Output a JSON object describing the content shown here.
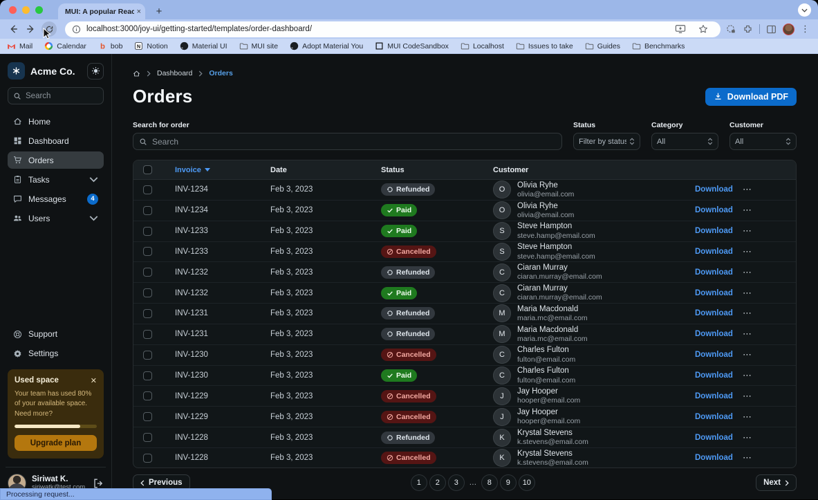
{
  "colors": {
    "primary": "#0B6BCB",
    "link": "#4E9AF5",
    "badge": "#0B6BCB",
    "paid_bg": "#1F7A1F",
    "cancelled_bg": "#551514",
    "cancelled_text": "#F2A79F",
    "refunded_bg": "#32383E",
    "warning_button": "#B4770E"
  },
  "browser": {
    "tab": {
      "title": "MUI: A popular React UI fram"
    },
    "url": "localhost:3000/joy-ui/getting-started/templates/order-dashboard/",
    "status_text": "Processing request...",
    "bookmarks": [
      {
        "label": "Mail",
        "icon": "gmail"
      },
      {
        "label": "Calendar",
        "icon": "gcal"
      },
      {
        "label": "bob",
        "icon": "bob"
      },
      {
        "label": "Notion",
        "icon": "notion"
      },
      {
        "label": "Material UI",
        "icon": "github"
      },
      {
        "label": "MUI site",
        "icon": "folder"
      },
      {
        "label": "Adopt Material You",
        "icon": "github"
      },
      {
        "label": "MUI CodeSandbox",
        "icon": "codesandbox"
      },
      {
        "label": "Localhost",
        "icon": "folder"
      },
      {
        "label": "Issues to take",
        "icon": "folder"
      },
      {
        "label": "Guides",
        "icon": "folder"
      },
      {
        "label": "Benchmarks",
        "icon": "folder"
      }
    ]
  },
  "sidebar": {
    "brand": "Acme Co.",
    "search_placeholder": "Search",
    "nav": [
      {
        "label": "Home",
        "icon": "home"
      },
      {
        "label": "Dashboard",
        "icon": "dashboard"
      },
      {
        "label": "Orders",
        "icon": "cart",
        "selected": true
      },
      {
        "label": "Tasks",
        "icon": "tasks",
        "chevron": true
      },
      {
        "label": "Messages",
        "icon": "messages",
        "badge": "4"
      },
      {
        "label": "Users",
        "icon": "users",
        "chevron": true
      }
    ],
    "secondary": [
      {
        "label": "Support",
        "icon": "support"
      },
      {
        "label": "Settings",
        "icon": "settings"
      }
    ],
    "used_space": {
      "title": "Used space",
      "body": "Your team has used 80% of your available space. Need more?",
      "progress_percent": 80,
      "button_label": "Upgrade plan"
    },
    "user": {
      "name": "Siriwat K.",
      "email": "siriwatk@test.com"
    }
  },
  "main": {
    "breadcrumb": [
      "Dashboard",
      "Orders"
    ],
    "title": "Orders",
    "download_button_label": "Download PDF",
    "filters": {
      "search_label": "Search for order",
      "search_placeholder": "Search",
      "selects": [
        {
          "label": "Status",
          "value": "Filter by status"
        },
        {
          "label": "Category",
          "value": "All"
        },
        {
          "label": "Customer",
          "value": "All"
        }
      ]
    },
    "table": {
      "columns": [
        "Invoice",
        "Date",
        "Status",
        "Customer"
      ],
      "download_label": "Download",
      "rows": [
        {
          "invoice": "INV-1234",
          "date": "Feb 3, 2023",
          "status": "Refunded",
          "status_type": "refunded",
          "initial": "O",
          "name": "Olivia Ryhe",
          "email": "olivia@email.com"
        },
        {
          "invoice": "INV-1234",
          "date": "Feb 3, 2023",
          "status": "Paid",
          "status_type": "paid",
          "initial": "O",
          "name": "Olivia Ryhe",
          "email": "olivia@email.com"
        },
        {
          "invoice": "INV-1233",
          "date": "Feb 3, 2023",
          "status": "Paid",
          "status_type": "paid",
          "initial": "S",
          "name": "Steve Hampton",
          "email": "steve.hamp@email.com"
        },
        {
          "invoice": "INV-1233",
          "date": "Feb 3, 2023",
          "status": "Cancelled",
          "status_type": "cancelled",
          "initial": "S",
          "name": "Steve Hampton",
          "email": "steve.hamp@email.com"
        },
        {
          "invoice": "INV-1232",
          "date": "Feb 3, 2023",
          "status": "Refunded",
          "status_type": "refunded",
          "initial": "C",
          "name": "Ciaran Murray",
          "email": "ciaran.murray@email.com"
        },
        {
          "invoice": "INV-1232",
          "date": "Feb 3, 2023",
          "status": "Paid",
          "status_type": "paid",
          "initial": "C",
          "name": "Ciaran Murray",
          "email": "ciaran.murray@email.com"
        },
        {
          "invoice": "INV-1231",
          "date": "Feb 3, 2023",
          "status": "Refunded",
          "status_type": "refunded",
          "initial": "M",
          "name": "Maria Macdonald",
          "email": "maria.mc@email.com"
        },
        {
          "invoice": "INV-1231",
          "date": "Feb 3, 2023",
          "status": "Refunded",
          "status_type": "refunded",
          "initial": "M",
          "name": "Maria Macdonald",
          "email": "maria.mc@email.com"
        },
        {
          "invoice": "INV-1230",
          "date": "Feb 3, 2023",
          "status": "Cancelled",
          "status_type": "cancelled",
          "initial": "C",
          "name": "Charles Fulton",
          "email": "fulton@email.com"
        },
        {
          "invoice": "INV-1230",
          "date": "Feb 3, 2023",
          "status": "Paid",
          "status_type": "paid",
          "initial": "C",
          "name": "Charles Fulton",
          "email": "fulton@email.com"
        },
        {
          "invoice": "INV-1229",
          "date": "Feb 3, 2023",
          "status": "Cancelled",
          "status_type": "cancelled",
          "initial": "J",
          "name": "Jay Hooper",
          "email": "hooper@email.com"
        },
        {
          "invoice": "INV-1229",
          "date": "Feb 3, 2023",
          "status": "Cancelled",
          "status_type": "cancelled",
          "initial": "J",
          "name": "Jay Hooper",
          "email": "hooper@email.com"
        },
        {
          "invoice": "INV-1228",
          "date": "Feb 3, 2023",
          "status": "Refunded",
          "status_type": "refunded",
          "initial": "K",
          "name": "Krystal Stevens",
          "email": "k.stevens@email.com"
        },
        {
          "invoice": "INV-1228",
          "date": "Feb 3, 2023",
          "status": "Cancelled",
          "status_type": "cancelled",
          "initial": "K",
          "name": "Krystal Stevens",
          "email": "k.stevens@email.com"
        }
      ]
    },
    "pagination": {
      "previous_label": "Previous",
      "next_label": "Next",
      "pages": [
        {
          "label": "1",
          "kind": "page"
        },
        {
          "label": "2",
          "kind": "page"
        },
        {
          "label": "3",
          "kind": "page"
        },
        {
          "label": "…",
          "kind": "ellipsis"
        },
        {
          "label": "8",
          "kind": "page"
        },
        {
          "label": "9",
          "kind": "page"
        },
        {
          "label": "10",
          "kind": "page"
        }
      ]
    }
  }
}
